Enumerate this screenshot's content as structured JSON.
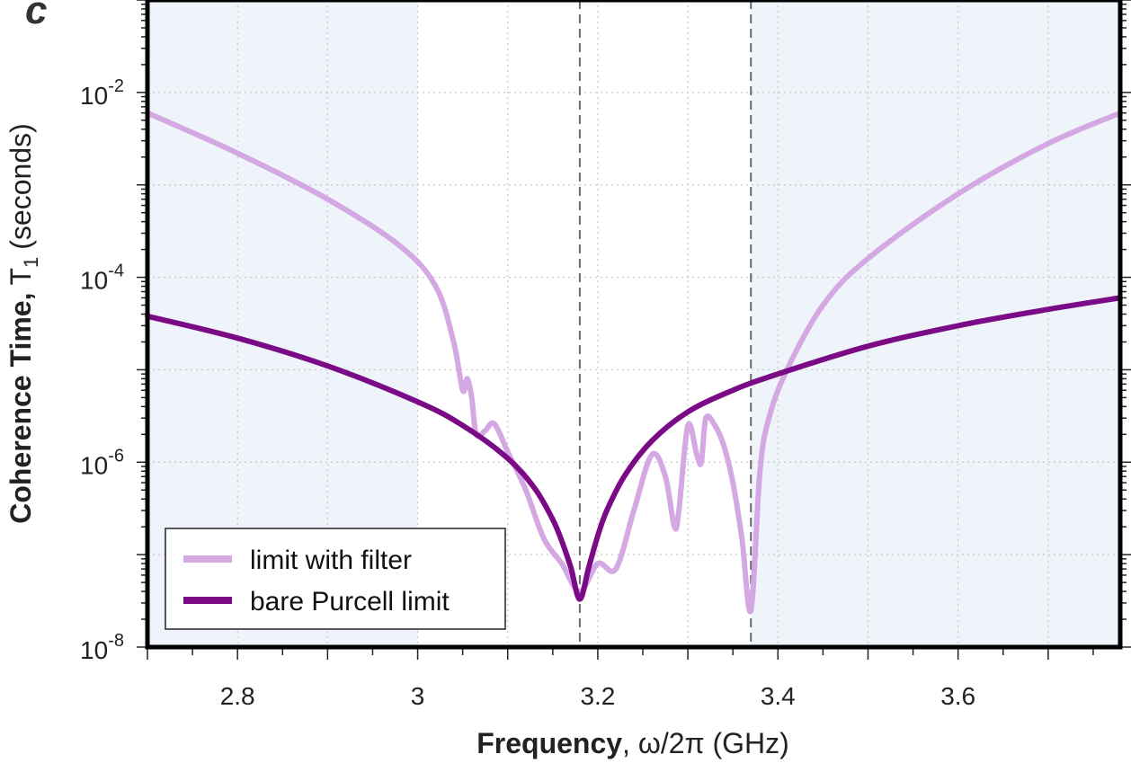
{
  "panel_label": "c",
  "chart_data": {
    "type": "line",
    "xlabel_bold": "Frequency",
    "xlabel_rest": ", ω/2π (GHz)",
    "ylabel_bold": "Coherence Time,",
    "ylabel_sym": "T",
    "ylabel_sub": "1",
    "ylabel_unit": "(seconds)",
    "x_scale": "linear",
    "y_scale": "log",
    "xlim": [
      2.7,
      3.78
    ],
    "ylim": [
      1e-08,
      0.1
    ],
    "xticks": [
      2.8,
      3.0,
      3.2,
      3.4,
      3.6
    ],
    "xtick_labels": [
      "2.8",
      "3",
      "3.2",
      "3.4",
      "3.6"
    ],
    "yticks": [
      1e-08,
      1e-06,
      0.0001,
      0.01
    ],
    "ytick_labels": [
      {
        "base": "10",
        "exp": "-8"
      },
      {
        "base": "10",
        "exp": "-6"
      },
      {
        "base": "10",
        "exp": "-4"
      },
      {
        "base": "10",
        "exp": "-2"
      }
    ],
    "grid": true,
    "shaded_bands": [
      {
        "x": [
          2.7,
          3.0
        ],
        "color": "#eef4f9"
      },
      {
        "x": [
          3.37,
          3.78
        ],
        "color": "#eef4f9"
      }
    ],
    "reference_lines": [
      3.18,
      3.37
    ],
    "legend_position": "bottom-left",
    "series": [
      {
        "name": "limit with filter",
        "color": "#d4a8e3",
        "x": [
          2.7,
          2.8,
          2.9,
          2.98,
          3.02,
          3.04,
          3.05,
          3.055,
          3.06,
          3.065,
          3.075,
          3.085,
          3.1,
          3.12,
          3.14,
          3.16,
          3.18,
          3.2,
          3.22,
          3.24,
          3.26,
          3.275,
          3.285,
          3.29,
          3.3,
          3.31,
          3.315,
          3.32,
          3.33,
          3.34,
          3.35,
          3.36,
          3.37,
          3.38,
          3.39,
          3.41,
          3.45,
          3.5,
          3.6,
          3.7,
          3.78
        ],
        "y": [
          0.006,
          0.0022,
          0.0007,
          0.00022,
          8e-05,
          2e-05,
          6e-06,
          8e-06,
          5e-06,
          2e-06,
          2.2e-06,
          2.6e-06,
          1.3e-06,
          5e-07,
          1.5e-07,
          8e-08,
          4e-08,
          8e-08,
          7e-08,
          3e-07,
          1.2e-06,
          7e-07,
          2e-07,
          3e-07,
          2.5e-06,
          1.2e-06,
          1e-06,
          3e-06,
          2.5e-06,
          1.5e-06,
          6e-07,
          1.5e-07,
          2.5e-08,
          8e-07,
          3e-06,
          1e-05,
          5e-05,
          0.00016,
          0.0008,
          0.0028,
          0.006
        ]
      },
      {
        "name": "bare Purcell limit",
        "color": "#7a0a86",
        "x": [
          2.7,
          2.8,
          2.9,
          3.0,
          3.05,
          3.1,
          3.13,
          3.15,
          3.16,
          3.17,
          3.18,
          3.19,
          3.2,
          3.21,
          3.23,
          3.26,
          3.3,
          3.35,
          3.4,
          3.5,
          3.6,
          3.7,
          3.78
        ],
        "y": [
          3.8e-05,
          2.2e-05,
          1.1e-05,
          4.5e-06,
          2.5e-06,
          1.1e-06,
          5.2e-07,
          2.4e-07,
          1.4e-07,
          7.3e-08,
          3.3e-08,
          7.3e-08,
          1.6e-07,
          3e-07,
          7.2e-07,
          1.7e-06,
          3.5e-06,
          6e-06,
          9e-06,
          1.8e-05,
          3e-05,
          4.5e-05,
          6e-05
        ]
      }
    ]
  }
}
